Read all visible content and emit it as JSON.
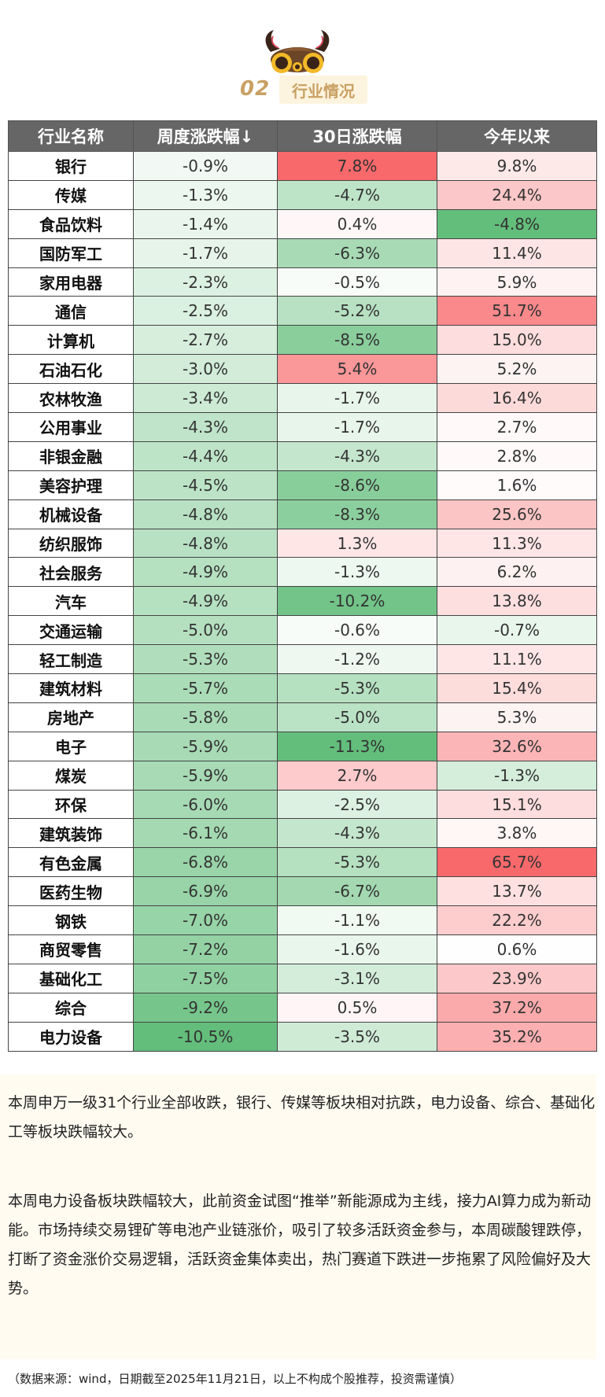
{
  "section": {
    "number": "02",
    "title": "行业情况"
  },
  "table": {
    "headers": [
      "行业名称",
      "周度涨跌幅↓",
      "30日涨跌幅",
      "今年以来"
    ],
    "rows": [
      {
        "name": "银行",
        "weekly": "-0.9%",
        "d30": "7.8%",
        "ytd": "9.8%",
        "weekly_num": -0.9,
        "d30_num": 7.8,
        "ytd_num": 9.8
      },
      {
        "name": "传媒",
        "weekly": "-1.3%",
        "d30": "-4.7%",
        "ytd": "24.4%",
        "weekly_num": -1.3,
        "d30_num": -4.7,
        "ytd_num": 24.4
      },
      {
        "name": "食品饮料",
        "weekly": "-1.4%",
        "d30": "0.4%",
        "ytd": "-4.8%",
        "weekly_num": -1.4,
        "d30_num": 0.4,
        "ytd_num": -4.8
      },
      {
        "name": "国防军工",
        "weekly": "-1.7%",
        "d30": "-6.3%",
        "ytd": "11.4%",
        "weekly_num": -1.7,
        "d30_num": -6.3,
        "ytd_num": 11.4
      },
      {
        "name": "家用电器",
        "weekly": "-2.3%",
        "d30": "-0.5%",
        "ytd": "5.9%",
        "weekly_num": -2.3,
        "d30_num": -0.5,
        "ytd_num": 5.9
      },
      {
        "name": "通信",
        "weekly": "-2.5%",
        "d30": "-5.2%",
        "ytd": "51.7%",
        "weekly_num": -2.5,
        "d30_num": -5.2,
        "ytd_num": 51.7
      },
      {
        "name": "计算机",
        "weekly": "-2.7%",
        "d30": "-8.5%",
        "ytd": "15.0%",
        "weekly_num": -2.7,
        "d30_num": -8.5,
        "ytd_num": 15.0
      },
      {
        "name": "石油石化",
        "weekly": "-3.0%",
        "d30": "5.4%",
        "ytd": "5.2%",
        "weekly_num": -3.0,
        "d30_num": 5.4,
        "ytd_num": 5.2
      },
      {
        "name": "农林牧渔",
        "weekly": "-3.4%",
        "d30": "-1.7%",
        "ytd": "16.4%",
        "weekly_num": -3.4,
        "d30_num": -1.7,
        "ytd_num": 16.4
      },
      {
        "name": "公用事业",
        "weekly": "-4.3%",
        "d30": "-1.7%",
        "ytd": "2.7%",
        "weekly_num": -4.3,
        "d30_num": -1.7,
        "ytd_num": 2.7
      },
      {
        "name": "非银金融",
        "weekly": "-4.4%",
        "d30": "-4.3%",
        "ytd": "2.8%",
        "weekly_num": -4.4,
        "d30_num": -4.3,
        "ytd_num": 2.8
      },
      {
        "name": "美容护理",
        "weekly": "-4.5%",
        "d30": "-8.6%",
        "ytd": "1.6%",
        "weekly_num": -4.5,
        "d30_num": -8.6,
        "ytd_num": 1.6
      },
      {
        "name": "机械设备",
        "weekly": "-4.8%",
        "d30": "-8.3%",
        "ytd": "25.6%",
        "weekly_num": -4.8,
        "d30_num": -8.3,
        "ytd_num": 25.6
      },
      {
        "name": "纺织服饰",
        "weekly": "-4.8%",
        "d30": "1.3%",
        "ytd": "11.3%",
        "weekly_num": -4.8,
        "d30_num": 1.3,
        "ytd_num": 11.3
      },
      {
        "name": "社会服务",
        "weekly": "-4.9%",
        "d30": "-1.3%",
        "ytd": "6.2%",
        "weekly_num": -4.9,
        "d30_num": -1.3,
        "ytd_num": 6.2
      },
      {
        "name": "汽车",
        "weekly": "-4.9%",
        "d30": "-10.2%",
        "ytd": "13.8%",
        "weekly_num": -4.9,
        "d30_num": -10.2,
        "ytd_num": 13.8
      },
      {
        "name": "交通运输",
        "weekly": "-5.0%",
        "d30": "-0.6%",
        "ytd": "-0.7%",
        "weekly_num": -5.0,
        "d30_num": -0.6,
        "ytd_num": -0.7
      },
      {
        "name": "轻工制造",
        "weekly": "-5.3%",
        "d30": "-1.2%",
        "ytd": "11.1%",
        "weekly_num": -5.3,
        "d30_num": -1.2,
        "ytd_num": 11.1
      },
      {
        "name": "建筑材料",
        "weekly": "-5.7%",
        "d30": "-5.3%",
        "ytd": "15.4%",
        "weekly_num": -5.7,
        "d30_num": -5.3,
        "ytd_num": 15.4
      },
      {
        "name": "房地产",
        "weekly": "-5.8%",
        "d30": "-5.0%",
        "ytd": "5.3%",
        "weekly_num": -5.8,
        "d30_num": -5.0,
        "ytd_num": 5.3
      },
      {
        "name": "电子",
        "weekly": "-5.9%",
        "d30": "-11.3%",
        "ytd": "32.6%",
        "weekly_num": -5.9,
        "d30_num": -11.3,
        "ytd_num": 32.6
      },
      {
        "name": "煤炭",
        "weekly": "-5.9%",
        "d30": "2.7%",
        "ytd": "-1.3%",
        "weekly_num": -5.9,
        "d30_num": 2.7,
        "ytd_num": -1.3
      },
      {
        "name": "环保",
        "weekly": "-6.0%",
        "d30": "-2.5%",
        "ytd": "15.1%",
        "weekly_num": -6.0,
        "d30_num": -2.5,
        "ytd_num": 15.1
      },
      {
        "name": "建筑装饰",
        "weekly": "-6.1%",
        "d30": "-4.3%",
        "ytd": "3.8%",
        "weekly_num": -6.1,
        "d30_num": -4.3,
        "ytd_num": 3.8
      },
      {
        "name": "有色金属",
        "weekly": "-6.8%",
        "d30": "-5.3%",
        "ytd": "65.7%",
        "weekly_num": -6.8,
        "d30_num": -5.3,
        "ytd_num": 65.7
      },
      {
        "name": "医药生物",
        "weekly": "-6.9%",
        "d30": "-6.7%",
        "ytd": "13.7%",
        "weekly_num": -6.9,
        "d30_num": -6.7,
        "ytd_num": 13.7
      },
      {
        "name": "钢铁",
        "weekly": "-7.0%",
        "d30": "-1.1%",
        "ytd": "22.2%",
        "weekly_num": -7.0,
        "d30_num": -1.1,
        "ytd_num": 22.2
      },
      {
        "name": "商贸零售",
        "weekly": "-7.2%",
        "d30": "-1.6%",
        "ytd": "0.6%",
        "weekly_num": -7.2,
        "d30_num": -1.6,
        "ytd_num": 0.6
      },
      {
        "name": "基础化工",
        "weekly": "-7.5%",
        "d30": "-3.1%",
        "ytd": "23.9%",
        "weekly_num": -7.5,
        "d30_num": -3.1,
        "ytd_num": 23.9
      },
      {
        "name": "综合",
        "weekly": "-9.2%",
        "d30": "0.5%",
        "ytd": "37.2%",
        "weekly_num": -9.2,
        "d30_num": 0.5,
        "ytd_num": 37.2
      },
      {
        "name": "电力设备",
        "weekly": "-10.5%",
        "d30": "-3.5%",
        "ytd": "35.2%",
        "weekly_num": -10.5,
        "d30_num": -3.5,
        "ytd_num": 35.2
      }
    ]
  },
  "colors": {
    "negative": "#63be7b",
    "positive": "#f8696b",
    "neutral": "#ffffff",
    "header_bg": "#666666",
    "accent": "#c9a063"
  },
  "paragraphs": [
    "本周申万一级31个行业全部收跌，银行、传媒等板块相对抗跌，电力设备、综合、基础化工等板块跌幅较大。",
    "本周电力设备板块跌幅较大，此前资金试图“推举”新能源成为主线，接力AI算力成为新动能。市场持续交易锂矿等电池产业链涨价，吸引了较多活跃资金参与，本周碳酸锂跌停，打断了资金涨价交易逻辑，活跃资金集体卖出，热门赛道下跌进一步拖累了风险偏好及大势。"
  ],
  "source_note": "（数据来源：wind，日期截至2025年11月21日，以上不构成个股推荐，投资需谨慎）"
}
